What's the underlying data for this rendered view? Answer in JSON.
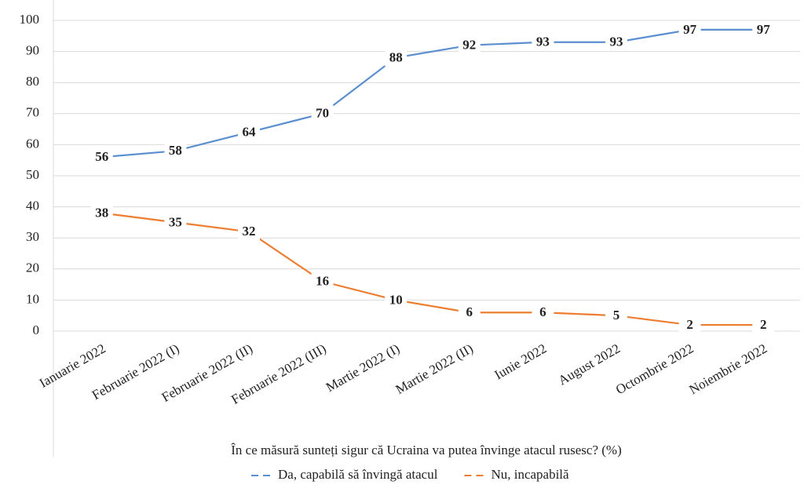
{
  "chart_data": {
    "type": "line",
    "categories": [
      "Ianuarie 2022",
      "Februarie 2022 (I)",
      "Februarie 2022 (II)",
      "Februarie 2022 (III)",
      "Martie 2022 (I)",
      "Martie 2022 (II)",
      "Iunie 2022",
      "August 2022",
      "Octombrie 2022",
      "Noiembrie 2022"
    ],
    "series": [
      {
        "name": "Da, capabilă să învingă atacul",
        "color": "#5b8fd0",
        "values": [
          56,
          58,
          64,
          70,
          88,
          92,
          93,
          93,
          97,
          97
        ]
      },
      {
        "name": "Nu, incapabilă",
        "color": "#ed7d31",
        "values": [
          38,
          35,
          32,
          16,
          10,
          6,
          6,
          5,
          2,
          2
        ]
      }
    ],
    "x_label": "În ce măsură sunteți sigur că Ucraina va putea învinge atacul rusesc? (%)",
    "ylim": [
      0,
      100
    ],
    "yticks": [
      0,
      10,
      20,
      30,
      40,
      50,
      60,
      70,
      80,
      90,
      100
    ],
    "grid": true,
    "legend": "bottom"
  }
}
